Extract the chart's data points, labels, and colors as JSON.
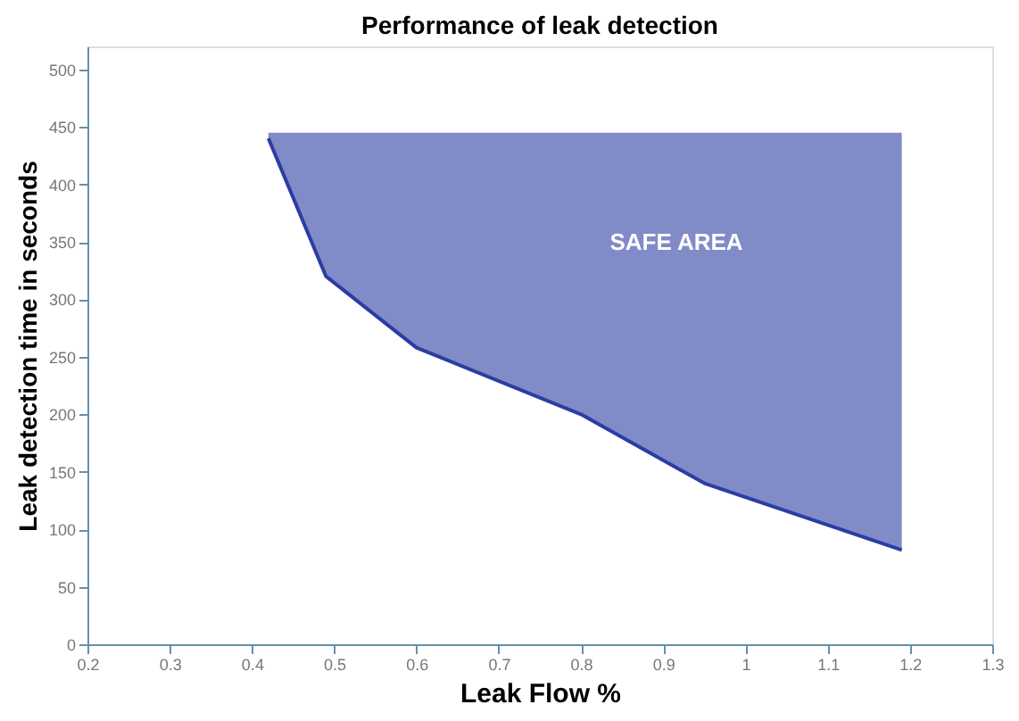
{
  "chart_data": {
    "type": "line",
    "title": "Performance of leak detection",
    "xlabel": "Leak Flow %",
    "ylabel": "Leak detection time in seconds",
    "x": [
      0.42,
      0.49,
      0.6,
      0.8,
      0.95,
      1.19
    ],
    "series": [
      {
        "color": "#2b3da2",
        "values": [
          440,
          320,
          258,
          200,
          140,
          82
        ],
        "lower": [
          440,
          320,
          258,
          200,
          140,
          82
        ],
        "upper": [
          445,
          445,
          445,
          445,
          445,
          445
        ]
      }
    ],
    "annotations": [
      "SAFE AREA"
    ],
    "xlim": [
      0.2,
      1.3
    ],
    "xticks": [
      0.2,
      0.3,
      0.4,
      0.5,
      0.6,
      0.7,
      0.8,
      0.9,
      {
        "value": 1,
        "label": "1"
      },
      1.1,
      1.2,
      1.3
    ],
    "ylim": [
      0,
      520
    ],
    "yticks": [
      0,
      50,
      100,
      150,
      200,
      250,
      300,
      350,
      400,
      450,
      500
    ],
    "grid": false,
    "legend": false
  }
}
